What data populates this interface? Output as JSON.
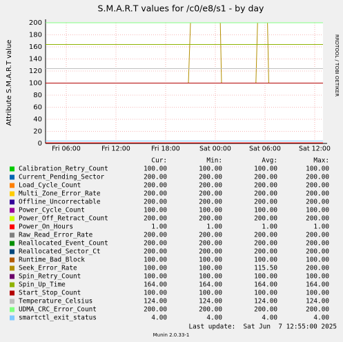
{
  "chart_data": {
    "type": "line",
    "title": "S.M.A.R.T values for /c0/e8/s1 - by day",
    "y_label": "Attribute S.M.A.R.T value",
    "watermark": "RRDTOOL / TOBI OETIKER",
    "x": [
      3.5,
      20.75,
      21,
      24.6,
      24.75,
      28.9,
      29.1,
      30.3,
      30.45,
      37
    ],
    "xlim": [
      3.5,
      37
    ],
    "xticks": [
      {
        "value": 6,
        "label": "Fri 06:00"
      },
      {
        "value": 12,
        "label": "Fri 12:00"
      },
      {
        "value": 18,
        "label": "Fri 18:00"
      },
      {
        "value": 24,
        "label": "Sat 00:00"
      },
      {
        "value": 30,
        "label": "Sat 06:00"
      },
      {
        "value": 36,
        "label": "Sat 12:00"
      }
    ],
    "ylim": [
      0,
      200
    ],
    "yticks": [
      0,
      20,
      40,
      60,
      80,
      100,
      120,
      140,
      160,
      180,
      200
    ],
    "grid": true,
    "legend_headers": [
      "Cur:",
      "Min:",
      "Avg:",
      "Max:"
    ],
    "series": [
      {
        "name": "Calibration_Retry_Count",
        "color": "#00cc00",
        "values": [
          100,
          100,
          100,
          100,
          100,
          100,
          100,
          100,
          100,
          100
        ],
        "stats": [
          "100.00",
          "100.00",
          "100.00",
          "100.00"
        ]
      },
      {
        "name": "Current_Pending_Sector",
        "color": "#0066b3",
        "values": [
          200,
          200,
          200,
          200,
          200,
          200,
          200,
          200,
          200,
          200
        ],
        "stats": [
          "200.00",
          "200.00",
          "200.00",
          "200.00"
        ]
      },
      {
        "name": "Load_Cycle_Count",
        "color": "#ff8000",
        "values": [
          200,
          200,
          200,
          200,
          200,
          200,
          200,
          200,
          200,
          200
        ],
        "stats": [
          "200.00",
          "200.00",
          "200.00",
          "200.00"
        ]
      },
      {
        "name": "Multi_Zone_Error_Rate",
        "color": "#ffcc00",
        "values": [
          200,
          200,
          200,
          200,
          200,
          200,
          200,
          200,
          200,
          200
        ],
        "stats": [
          "200.00",
          "200.00",
          "200.00",
          "200.00"
        ]
      },
      {
        "name": "Offline_Uncorrectable",
        "color": "#330099",
        "values": [
          200,
          200,
          200,
          200,
          200,
          200,
          200,
          200,
          200,
          200
        ],
        "stats": [
          "200.00",
          "200.00",
          "200.00",
          "200.00"
        ]
      },
      {
        "name": "Power_Cycle_Count",
        "color": "#990099",
        "values": [
          100,
          100,
          100,
          100,
          100,
          100,
          100,
          100,
          100,
          100
        ],
        "stats": [
          "100.00",
          "100.00",
          "100.00",
          "100.00"
        ]
      },
      {
        "name": "Power_Off_Retract_Count",
        "color": "#ccff00",
        "values": [
          200,
          200,
          200,
          200,
          200,
          200,
          200,
          200,
          200,
          200
        ],
        "stats": [
          "200.00",
          "200.00",
          "200.00",
          "200.00"
        ]
      },
      {
        "name": "Power_On_Hours",
        "color": "#ff0000",
        "values": [
          1,
          1,
          1,
          1,
          1,
          1,
          1,
          1,
          1,
          1
        ],
        "stats": [
          "1.00",
          "1.00",
          "1.00",
          "1.00"
        ]
      },
      {
        "name": "Raw_Read_Error_Rate",
        "color": "#808080",
        "values": [
          200,
          200,
          200,
          200,
          200,
          200,
          200,
          200,
          200,
          200
        ],
        "stats": [
          "200.00",
          "200.00",
          "200.00",
          "200.00"
        ]
      },
      {
        "name": "Reallocated_Event_Count",
        "color": "#008f00",
        "values": [
          200,
          200,
          200,
          200,
          200,
          200,
          200,
          200,
          200,
          200
        ],
        "stats": [
          "200.00",
          "200.00",
          "200.00",
          "200.00"
        ]
      },
      {
        "name": "Reallocated_Sector_Ct",
        "color": "#00487d",
        "values": [
          200,
          200,
          200,
          200,
          200,
          200,
          200,
          200,
          200,
          200
        ],
        "stats": [
          "200.00",
          "200.00",
          "200.00",
          "200.00"
        ]
      },
      {
        "name": "Runtime_Bad_Block",
        "color": "#b35a00",
        "values": [
          100,
          100,
          100,
          100,
          100,
          100,
          100,
          100,
          100,
          100
        ],
        "stats": [
          "100.00",
          "100.00",
          "100.00",
          "100.00"
        ]
      },
      {
        "name": "Seek_Error_Rate",
        "color": "#b38f00",
        "values": [
          100,
          100,
          200,
          200,
          100,
          100,
          200,
          200,
          100,
          100
        ],
        "stats": [
          "100.00",
          "100.00",
          "115.50",
          "200.00"
        ]
      },
      {
        "name": "Spin_Retry_Count",
        "color": "#6b006b",
        "values": [
          100,
          100,
          100,
          100,
          100,
          100,
          100,
          100,
          100,
          100
        ],
        "stats": [
          "100.00",
          "100.00",
          "100.00",
          "100.00"
        ]
      },
      {
        "name": "Spin_Up_Time",
        "color": "#8fb300",
        "values": [
          164,
          164,
          164,
          164,
          164,
          164,
          164,
          164,
          164,
          164
        ],
        "stats": [
          "164.00",
          "164.00",
          "164.00",
          "164.00"
        ]
      },
      {
        "name": "Start_Stop_Count",
        "color": "#b30000",
        "values": [
          100,
          100,
          100,
          100,
          100,
          100,
          100,
          100,
          100,
          100
        ],
        "stats": [
          "100.00",
          "100.00",
          "100.00",
          "100.00"
        ]
      },
      {
        "name": "Temperature_Celsius",
        "color": "#bebebe",
        "values": [
          124,
          124,
          124,
          124,
          124,
          124,
          124,
          124,
          124,
          124
        ],
        "stats": [
          "124.00",
          "124.00",
          "124.00",
          "124.00"
        ]
      },
      {
        "name": "UDMA_CRC_Error_Count",
        "color": "#80ff80",
        "values": [
          200,
          200,
          200,
          200,
          200,
          200,
          200,
          200,
          200,
          200
        ],
        "stats": [
          "200.00",
          "200.00",
          "200.00",
          "200.00"
        ]
      },
      {
        "name": "smartctl_exit_status",
        "color": "#80c9ff",
        "values": [
          4,
          4,
          4,
          4,
          4,
          4,
          4,
          4,
          4,
          4
        ],
        "stats": [
          "4.00",
          "4.00",
          "4.00",
          "4.00"
        ]
      }
    ],
    "last_update": "Last update:  Sat Jun  7 12:55:00 2025",
    "footer": "Munin 2.0.33-1"
  }
}
